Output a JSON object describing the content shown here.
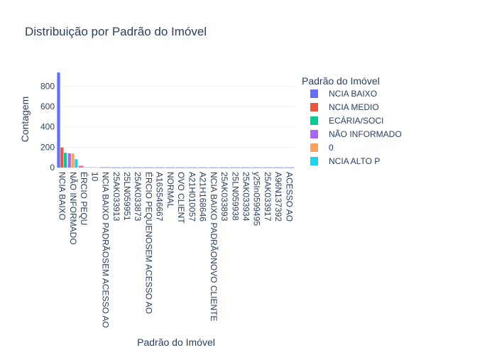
{
  "chart_data": {
    "type": "bar",
    "title": "Distribuição por Padrão do Imóvel",
    "xlabel": "Padrão do Imóvel",
    "ylabel": "Contagem",
    "ylim": [
      0,
      950
    ],
    "yticks": [
      0,
      200,
      400,
      600,
      800
    ],
    "legend_title": "Padrão do Imóvel",
    "legend_placement": "right",
    "grid": true,
    "categories": [
      "NCIA BAIXO",
      "NÃO INFORMADO",
      "ÉRCIO PEQU",
      "10",
      "NCIA BAIXO PADRÃOSEM ACESSO AO",
      "25AK033913",
      "25LN059951",
      "25AK033873",
      "ÉRCIO PEQUENOSEM ACESSO AO",
      "A16S546667",
      "NORMAL",
      "OVO CLIENT",
      "A21H010057",
      "A21H168646",
      "NCIA BAIXO PADRÃONOVO CLIENTE",
      "25AK033893",
      "25LN059938",
      "25AK033934",
      "y25In0599495",
      "25AK033917",
      "A96N137392",
      "ACESSO AO"
    ],
    "series": [
      {
        "name": "NCIA BAIXO",
        "color": "#636efa",
        "values": [
          935,
          0,
          0,
          0,
          0,
          0,
          0,
          0,
          0,
          0,
          0,
          0,
          0,
          0,
          0,
          0,
          0,
          0,
          0,
          0,
          0,
          0
        ]
      },
      {
        "name": "NCIA MEDIO",
        "color": "#EF553B",
        "values": [
          198,
          0,
          0,
          0,
          0,
          0,
          0,
          0,
          0,
          0,
          0,
          0,
          0,
          0,
          0,
          0,
          0,
          0,
          0,
          0,
          0,
          0
        ]
      },
      {
        "name": "ECÁRIA/SOCI",
        "color": "#00cc96",
        "values": [
          145,
          0,
          0,
          0,
          0,
          0,
          0,
          0,
          0,
          0,
          0,
          0,
          0,
          0,
          0,
          0,
          0,
          0,
          0,
          0,
          0,
          0
        ]
      },
      {
        "name": "NÃO INFORMADO",
        "color": "#ab63fa",
        "values": [
          0,
          140,
          0,
          0,
          0,
          0,
          0,
          0,
          0,
          0,
          0,
          0,
          0,
          0,
          0,
          0,
          0,
          0,
          0,
          0,
          0,
          0
        ]
      },
      {
        "name": "0",
        "color": "#FFA15A",
        "values": [
          0,
          138,
          0,
          0,
          0,
          0,
          0,
          0,
          0,
          0,
          0,
          0,
          0,
          0,
          0,
          0,
          0,
          0,
          0,
          0,
          0,
          0
        ]
      },
      {
        "name": "NCIA ALTO P",
        "color": "#19d3f3",
        "values": [
          0,
          82,
          0,
          0,
          0,
          0,
          0,
          0,
          0,
          0,
          0,
          0,
          0,
          0,
          0,
          0,
          0,
          0,
          0,
          0,
          0,
          0
        ]
      },
      {
        "name": "",
        "color": "#FF6692",
        "values": [
          0,
          0,
          18,
          0,
          0,
          0,
          0,
          0,
          0,
          0,
          0,
          0,
          0,
          0,
          0,
          0,
          0,
          0,
          0,
          0,
          0,
          0
        ]
      },
      {
        "name": "",
        "color": "#B6E880",
        "values": [
          0,
          0,
          6,
          0,
          0,
          0,
          0,
          0,
          0,
          0,
          0,
          0,
          0,
          0,
          0,
          0,
          0,
          0,
          0,
          0,
          0,
          0
        ]
      },
      {
        "name": "",
        "color": "#FF97FF",
        "values": [
          0,
          0,
          0,
          4,
          0,
          0,
          0,
          0,
          0,
          0,
          0,
          0,
          0,
          0,
          0,
          0,
          0,
          0,
          0,
          0,
          0,
          0
        ]
      },
      {
        "name": "",
        "color": "#FECB52",
        "values": [
          0,
          0,
          0,
          3,
          0,
          0,
          0,
          0,
          0,
          0,
          0,
          0,
          0,
          0,
          0,
          0,
          0,
          0,
          0,
          0,
          0,
          0
        ]
      },
      {
        "name": "",
        "color": "#636efa",
        "values": [
          0,
          0,
          0,
          0,
          2,
          1,
          1,
          1,
          1,
          1,
          1,
          1,
          1,
          1,
          1,
          1,
          1,
          1,
          1,
          1,
          1,
          1
        ]
      }
    ]
  }
}
